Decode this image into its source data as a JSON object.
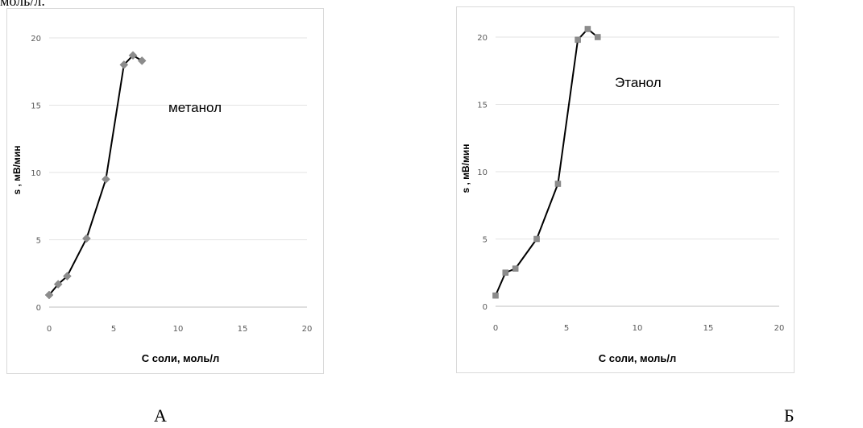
{
  "header_fragment": "моль/л.",
  "panels": {
    "a": {
      "letter": "А"
    },
    "b": {
      "letter": "Б"
    }
  },
  "chart_data": [
    {
      "type": "line",
      "annotation": "метанол",
      "xlabel": "С соли, моль/л",
      "ylabel": "s , мВ/мин",
      "xlim": [
        0,
        20
      ],
      "ylim": [
        0,
        20
      ],
      "xticks": [
        0,
        5,
        10,
        15,
        20
      ],
      "yticks": [
        0,
        5,
        10,
        15,
        20
      ],
      "grid": "horizontal",
      "marker": "diamond",
      "marker_color": "#8c8c8c",
      "line_color": "#000000",
      "x": [
        0,
        0.7,
        1.4,
        2.9,
        4.4,
        5.8,
        6.5,
        7.2
      ],
      "y": [
        0.9,
        1.7,
        2.3,
        5.1,
        9.5,
        18.0,
        18.7,
        18.3
      ]
    },
    {
      "type": "line",
      "annotation": "Этанол",
      "xlabel": "С соли, моль/л",
      "ylabel": "s , мВ/мин",
      "xlim": [
        0,
        20
      ],
      "ylim": [
        0,
        20
      ],
      "xticks": [
        0,
        5,
        10,
        15,
        20
      ],
      "yticks": [
        0,
        5,
        10,
        15,
        20
      ],
      "grid": "horizontal",
      "marker": "square",
      "marker_color": "#8c8c8c",
      "line_color": "#000000",
      "x": [
        0,
        0.7,
        1.4,
        2.9,
        4.4,
        5.8,
        6.5,
        7.2
      ],
      "y": [
        0.8,
        2.5,
        2.8,
        5.0,
        9.1,
        19.8,
        20.6,
        20.0
      ]
    }
  ]
}
